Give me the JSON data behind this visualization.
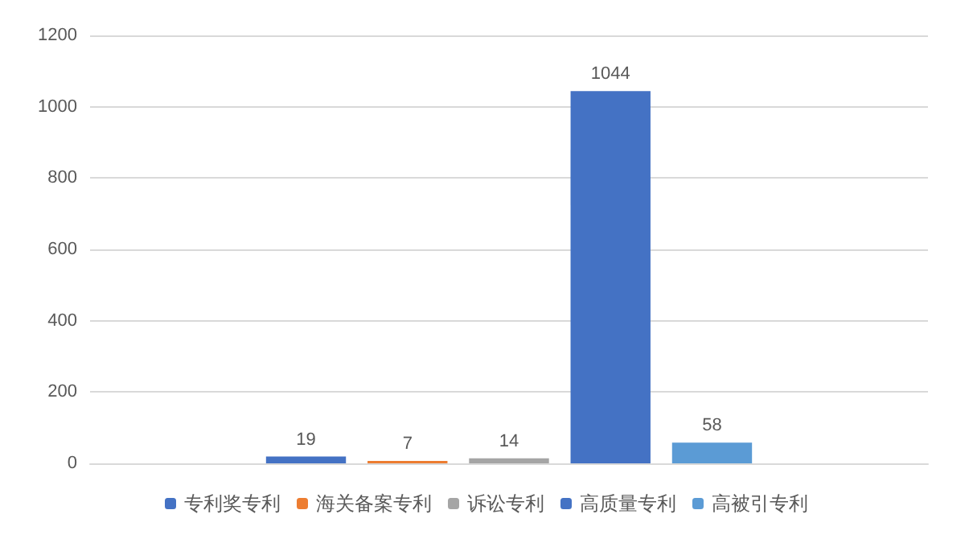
{
  "chart_data": {
    "type": "bar",
    "categories": [
      null
    ],
    "series": [
      {
        "name": "专利奖专利",
        "color": "#4472c4",
        "values": [
          19
        ]
      },
      {
        "name": "海关备案专利",
        "color": "#ed7d31",
        "values": [
          7
        ]
      },
      {
        "name": "诉讼专利",
        "color": "#a5a5a5",
        "values": [
          14
        ]
      },
      {
        "name": "高质量专利",
        "color": "#4472c4",
        "values": [
          1044
        ]
      },
      {
        "name": "高被引专利",
        "color": "#5b9bd5",
        "values": [
          58
        ]
      }
    ],
    "ylim": [
      0,
      1200
    ],
    "yticks": [
      0,
      200,
      400,
      600,
      800,
      1000,
      1200
    ],
    "grid": "y",
    "legend": "bottom",
    "data_labels": true
  }
}
